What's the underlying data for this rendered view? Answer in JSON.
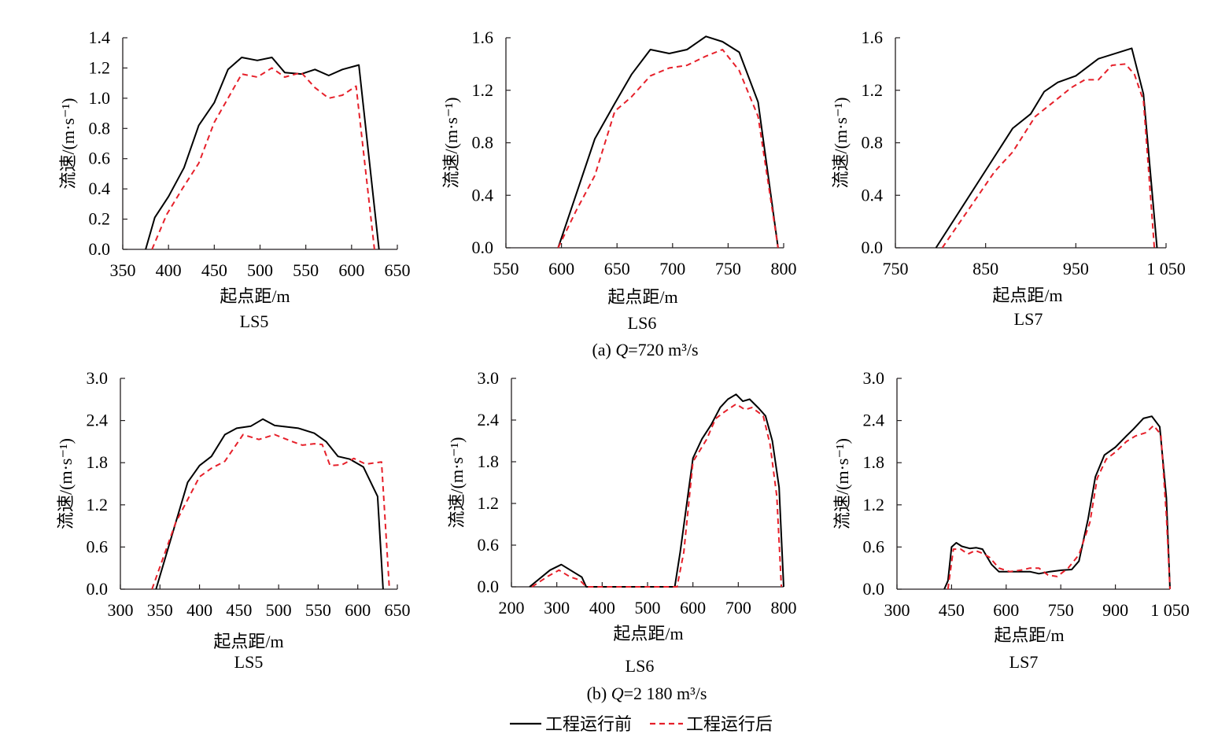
{
  "legend": {
    "before": "工程运行前",
    "after": "工程运行后"
  },
  "colors": {
    "before": "#000000",
    "after": "#e6202a",
    "axis": "#231f20"
  },
  "chart_data": [
    {
      "type": "line",
      "panel": "a",
      "panel_caption": {
        "prefix": "(a) ",
        "var": "Q",
        "text": "=720 m³/s"
      },
      "subtitle": "LS5",
      "xlabel": "起点距/m",
      "ylabel": "流速/(m·s⁻¹)",
      "xlim": [
        350,
        650
      ],
      "ylim": [
        0,
        1.4
      ],
      "xticks": [
        350,
        400,
        450,
        500,
        550,
        600,
        650
      ],
      "yticks": [
        0,
        0.2,
        0.4,
        0.6,
        0.8,
        1.0,
        1.2,
        1.4
      ],
      "xtick_labels": [
        "350",
        "400",
        "450",
        "500",
        "550",
        "600",
        "650"
      ],
      "ytick_labels": [
        "0.0",
        "0.2",
        "0.4",
        "0.6",
        "0.8",
        "1.0",
        "1.2",
        "1.4"
      ],
      "series": [
        {
          "name": "工程运行前",
          "style": "solid",
          "x": [
            375,
            385,
            400,
            417,
            433,
            450,
            465,
            480,
            497,
            513,
            527,
            545,
            560,
            575,
            590,
            608,
            630
          ],
          "y": [
            0.0,
            0.21,
            0.35,
            0.54,
            0.82,
            0.97,
            1.19,
            1.27,
            1.25,
            1.27,
            1.17,
            1.16,
            1.19,
            1.15,
            1.19,
            1.22,
            0.0
          ]
        },
        {
          "name": "工程运行后",
          "style": "dashed",
          "x": [
            382,
            398,
            415,
            433,
            450,
            465,
            480,
            497,
            513,
            527,
            545,
            560,
            575,
            590,
            605,
            625
          ],
          "y": [
            0.0,
            0.23,
            0.4,
            0.57,
            0.84,
            1.0,
            1.16,
            1.14,
            1.2,
            1.14,
            1.17,
            1.07,
            1.0,
            1.02,
            1.08,
            0.0
          ]
        }
      ]
    },
    {
      "type": "line",
      "panel": "a",
      "subtitle": "LS6",
      "xlabel": "起点距/m",
      "ylabel": "流速/(m·s⁻¹)",
      "xlim": [
        550,
        800
      ],
      "ylim": [
        0,
        1.6
      ],
      "xticks": [
        550,
        600,
        650,
        700,
        750,
        800
      ],
      "yticks": [
        0,
        0.4,
        0.8,
        1.2,
        1.6
      ],
      "xtick_labels": [
        "550",
        "600",
        "650",
        "700",
        "750",
        "800"
      ],
      "ytick_labels": [
        "0.0",
        "0.4",
        "0.8",
        "1.2",
        "1.6"
      ],
      "series": [
        {
          "name": "工程运行前",
          "style": "solid",
          "x": [
            597,
            630,
            648,
            663,
            680,
            697,
            713,
            730,
            745,
            760,
            777,
            795
          ],
          "y": [
            0.0,
            0.83,
            1.1,
            1.32,
            1.51,
            1.48,
            1.51,
            1.61,
            1.57,
            1.49,
            1.11,
            0.0
          ]
        },
        {
          "name": "工程运行后",
          "style": "dashed",
          "x": [
            597,
            613,
            630,
            648,
            663,
            680,
            697,
            713,
            730,
            745,
            760,
            777,
            795
          ],
          "y": [
            0.0,
            0.28,
            0.55,
            1.04,
            1.15,
            1.31,
            1.37,
            1.39,
            1.46,
            1.51,
            1.35,
            1.0,
            0.0
          ]
        }
      ]
    },
    {
      "type": "line",
      "panel": "a",
      "subtitle": "LS7",
      "xlabel": "起点距/m",
      "ylabel": "流速/(m·s⁻¹)",
      "xlim": [
        750,
        1050
      ],
      "ylim": [
        0,
        1.6
      ],
      "xticks": [
        750,
        850,
        950,
        1050
      ],
      "yticks": [
        0,
        0.4,
        0.8,
        1.2,
        1.6
      ],
      "xtick_labels": [
        "750",
        "850",
        "950",
        "1 050"
      ],
      "ytick_labels": [
        "0.0",
        "0.4",
        "0.8",
        "1.2",
        "1.6"
      ],
      "series": [
        {
          "name": "工程运行前",
          "style": "solid",
          "x": [
            795,
            880,
            900,
            915,
            930,
            950,
            975,
            1012,
            1025,
            1040
          ],
          "y": [
            0.0,
            0.91,
            1.02,
            1.19,
            1.26,
            1.31,
            1.44,
            1.52,
            1.17,
            0.0
          ]
        },
        {
          "name": "工程运行后",
          "style": "dashed",
          "x": [
            802,
            860,
            880,
            905,
            925,
            945,
            960,
            975,
            990,
            1005,
            1015,
            1025,
            1037
          ],
          "y": [
            0.0,
            0.58,
            0.73,
            1.0,
            1.11,
            1.22,
            1.28,
            1.28,
            1.39,
            1.4,
            1.32,
            1.12,
            0.0
          ]
        }
      ]
    },
    {
      "type": "line",
      "panel": "b",
      "panel_caption": {
        "prefix": "(b) ",
        "var": "Q",
        "text": "=2 180 m³/s"
      },
      "subtitle": "LS5",
      "xlabel": "起点距/m",
      "ylabel": "流速/(m·s⁻¹)",
      "xlim": [
        300,
        650
      ],
      "ylim": [
        0,
        3.0
      ],
      "xticks": [
        300,
        350,
        400,
        450,
        500,
        550,
        600,
        650
      ],
      "yticks": [
        0,
        0.6,
        1.2,
        1.8,
        2.4,
        3.0
      ],
      "xtick_labels": [
        "300",
        "350",
        "400",
        "450",
        "500",
        "550",
        "600",
        "650"
      ],
      "ytick_labels": [
        "0.0",
        "0.6",
        "1.2",
        "1.8",
        "2.4",
        "3.0"
      ],
      "series": [
        {
          "name": "工程运行前",
          "style": "solid",
          "x": [
            345,
            370,
            385,
            400,
            415,
            432,
            447,
            465,
            480,
            495,
            525,
            545,
            560,
            575,
            590,
            607,
            625,
            632
          ],
          "y": [
            0.0,
            0.95,
            1.52,
            1.76,
            1.89,
            2.2,
            2.29,
            2.32,
            2.42,
            2.33,
            2.29,
            2.22,
            2.1,
            1.89,
            1.85,
            1.74,
            1.32,
            0.0
          ]
        },
        {
          "name": "工程运行后",
          "style": "dashed",
          "x": [
            340,
            370,
            400,
            415,
            432,
            455,
            475,
            495,
            515,
            530,
            545,
            555,
            565,
            580,
            595,
            610,
            630,
            640
          ],
          "y": [
            0.0,
            0.95,
            1.6,
            1.72,
            1.82,
            2.2,
            2.13,
            2.2,
            2.11,
            2.05,
            2.07,
            2.06,
            1.76,
            1.77,
            1.86,
            1.78,
            1.81,
            0.0
          ]
        }
      ]
    },
    {
      "type": "line",
      "panel": "b",
      "subtitle": "LS6",
      "xlabel": "起点距/m",
      "ylabel": "流速/(m·s⁻¹)",
      "xlim": [
        200,
        800
      ],
      "ylim": [
        0,
        3.0
      ],
      "xticks": [
        200,
        300,
        400,
        500,
        600,
        700,
        800
      ],
      "yticks": [
        0,
        0.6,
        1.2,
        1.8,
        2.4,
        3.0
      ],
      "xtick_labels": [
        "200",
        "300",
        "400",
        "500",
        "600",
        "700",
        "800"
      ],
      "ytick_labels": [
        "0.0",
        "0.6",
        "1.2",
        "1.8",
        "2.4",
        "3.0"
      ],
      "series": [
        {
          "name": "工程运行前",
          "style": "solid",
          "x": [
            240,
            285,
            310,
            340,
            355,
            365,
            560,
            572,
            600,
            620,
            640,
            660,
            677,
            695,
            710,
            725,
            745,
            760,
            775,
            790,
            800
          ],
          "y": [
            0.0,
            0.24,
            0.32,
            0.2,
            0.14,
            0.0,
            0.0,
            0.5,
            1.85,
            2.13,
            2.33,
            2.58,
            2.7,
            2.77,
            2.67,
            2.7,
            2.57,
            2.46,
            2.1,
            1.43,
            0.0
          ]
        },
        {
          "name": "工程运行后",
          "style": "dashed",
          "x": [
            245,
            280,
            305,
            330,
            350,
            365,
            565,
            580,
            600,
            630,
            650,
            670,
            695,
            715,
            730,
            755,
            770,
            785,
            795
          ],
          "y": [
            0.0,
            0.15,
            0.24,
            0.14,
            0.1,
            0.0,
            0.0,
            0.5,
            1.8,
            2.12,
            2.42,
            2.52,
            2.63,
            2.55,
            2.58,
            2.46,
            2.05,
            1.3,
            0.0
          ]
        }
      ]
    },
    {
      "type": "line",
      "panel": "b",
      "subtitle": "LS7",
      "xlabel": "起点距/m",
      "ylabel": "流速/(m·s⁻¹)",
      "xlim": [
        300,
        1050
      ],
      "ylim": [
        0,
        3.0
      ],
      "xticks": [
        300,
        450,
        600,
        750,
        900,
        1050
      ],
      "yticks": [
        0,
        0.6,
        1.2,
        1.8,
        2.4,
        3.0
      ],
      "xtick_labels": [
        "300",
        "450",
        "600",
        "750",
        "900",
        "1 050"
      ],
      "ytick_labels": [
        "0.0",
        "0.6",
        "1.2",
        "1.8",
        "2.4",
        "3.0"
      ],
      "series": [
        {
          "name": "工程运行前",
          "style": "solid",
          "x": [
            430,
            440,
            450,
            463,
            478,
            500,
            518,
            535,
            560,
            580,
            610,
            640,
            665,
            690,
            720,
            752,
            780,
            800,
            825,
            845,
            870,
            900,
            930,
            950,
            977,
            1000,
            1022,
            1040,
            1050
          ],
          "y": [
            0.0,
            0.12,
            0.6,
            0.66,
            0.61,
            0.58,
            0.59,
            0.57,
            0.35,
            0.25,
            0.25,
            0.25,
            0.25,
            0.22,
            0.25,
            0.27,
            0.28,
            0.4,
            1.0,
            1.6,
            1.91,
            2.02,
            2.18,
            2.28,
            2.43,
            2.46,
            2.31,
            1.3,
            0.0
          ]
        },
        {
          "name": "工程运行后",
          "style": "dashed",
          "x": [
            440,
            455,
            475,
            495,
            515,
            535,
            555,
            580,
            610,
            640,
            665,
            690,
            715,
            740,
            770,
            800,
            830,
            850,
            875,
            900,
            930,
            955,
            985,
            1005,
            1025,
            1040,
            1050
          ],
          "y": [
            0.0,
            0.57,
            0.57,
            0.5,
            0.55,
            0.51,
            0.45,
            0.3,
            0.25,
            0.27,
            0.3,
            0.3,
            0.2,
            0.18,
            0.3,
            0.49,
            0.95,
            1.58,
            1.85,
            1.95,
            2.1,
            2.18,
            2.23,
            2.33,
            2.2,
            1.05,
            0.0
          ]
        }
      ]
    }
  ]
}
